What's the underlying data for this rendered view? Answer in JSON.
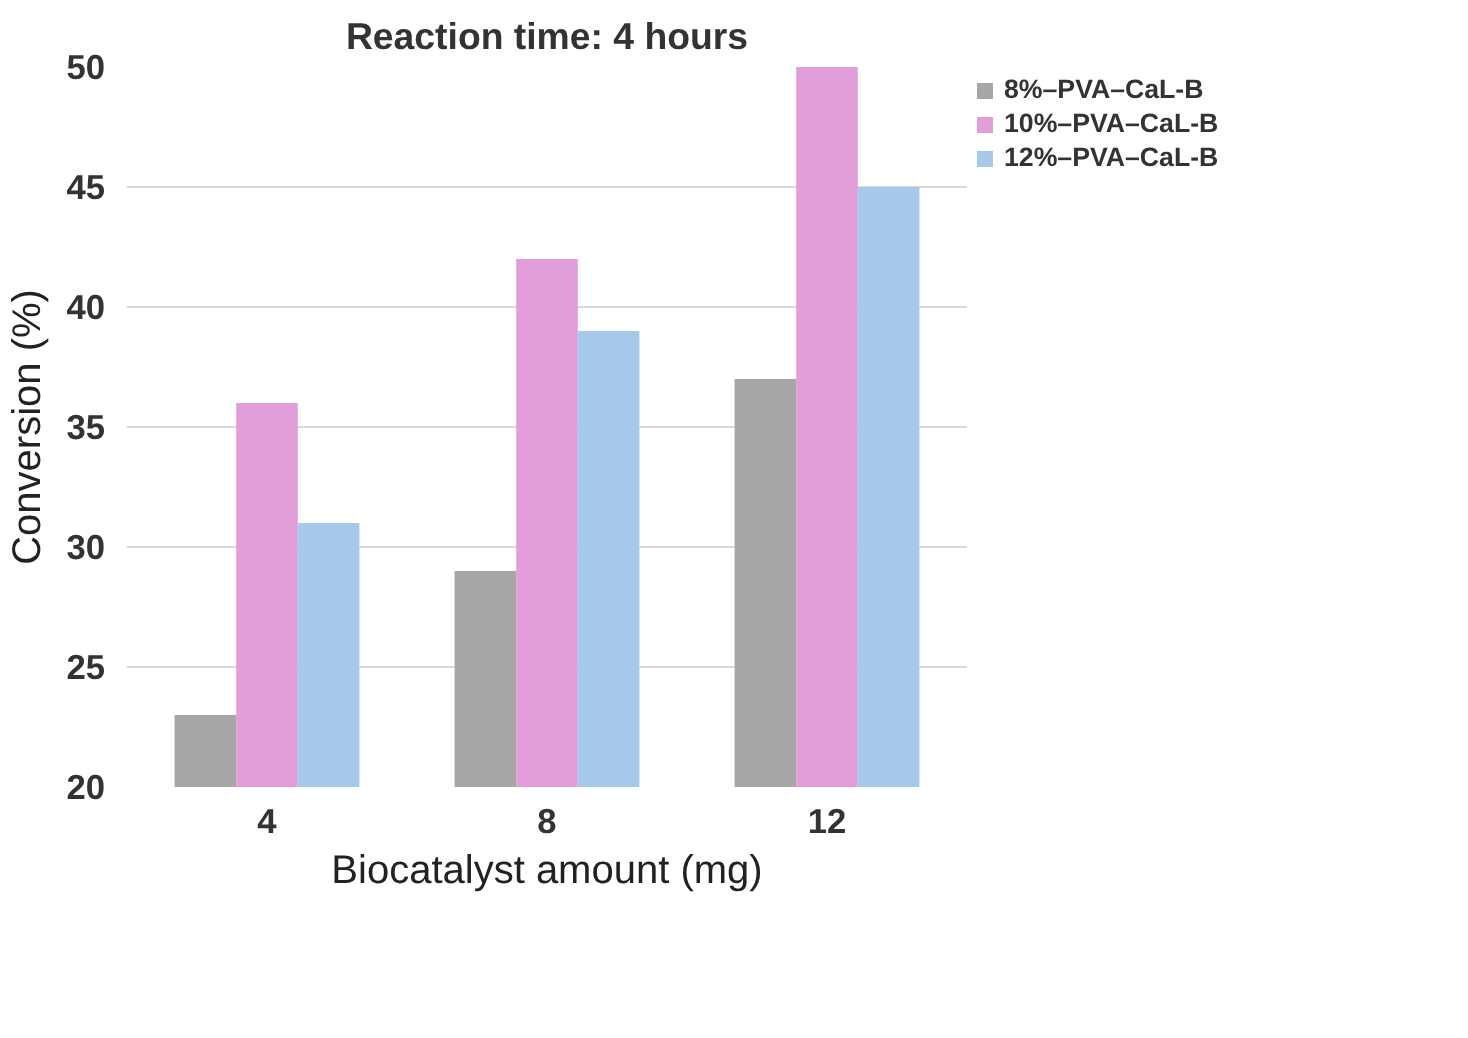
{
  "chart_data": {
    "type": "bar",
    "title": "Reaction time: 4 hours",
    "xlabel": "Biocatalyst amount (mg)",
    "ylabel": "Conversion (%)",
    "categories": [
      "4",
      "8",
      "12"
    ],
    "series": [
      {
        "name": "8%–PVA–CaL-B",
        "color": "#a6a6a6",
        "values": [
          23,
          29,
          37
        ]
      },
      {
        "name": "10%–PVA–CaL-B",
        "color": "#e29edb",
        "values": [
          36,
          42,
          50
        ]
      },
      {
        "name": "12%–PVA–CaL-B",
        "color": "#a6c8ea",
        "values": [
          31,
          39,
          45
        ]
      }
    ],
    "ylim": [
      20,
      50
    ],
    "yticks": [
      20,
      25,
      30,
      35,
      40,
      45,
      50
    ],
    "grid": "y",
    "legend": "top right"
  }
}
